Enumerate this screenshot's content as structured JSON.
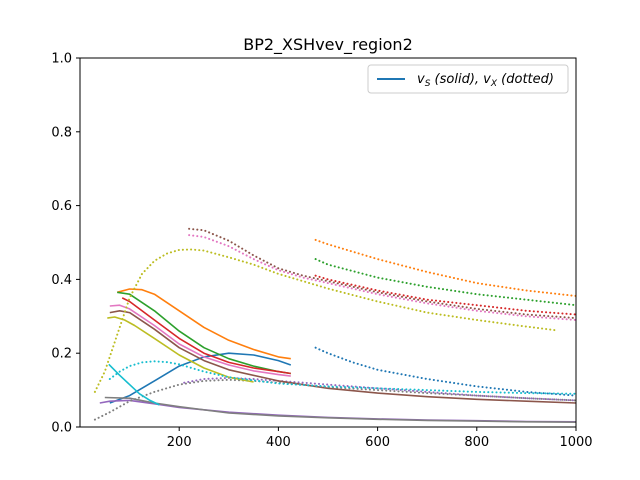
{
  "chart_data": {
    "type": "line",
    "title": "BP2_XSHvev_region2",
    "xlabel": "",
    "ylabel": "",
    "xlim": [
      0,
      1000
    ],
    "ylim": [
      0,
      1.0
    ],
    "xticks": [
      200,
      400,
      600,
      800,
      1000
    ],
    "yticks": [
      0.0,
      0.2,
      0.4,
      0.6,
      0.8,
      1.0
    ],
    "xtick_labels": [
      "200",
      "400",
      "600",
      "800",
      "1000"
    ],
    "ytick_labels": [
      "0.0",
      "0.2",
      "0.4",
      "0.6",
      "0.8",
      "1.0"
    ],
    "grid": false,
    "legend": {
      "placement": "top-right",
      "label": "v_S (solid), v_X (dotted)",
      "label_main": "v",
      "label_sub1": "S",
      "label_mid": " (solid), ",
      "label_sub2": "X",
      "label_end": " (dotted)",
      "color": "#1f77b4"
    },
    "series": [
      {
        "style": "solid",
        "color": "#1f77b4",
        "x": [
          60,
          100,
          150,
          200,
          250,
          300,
          350,
          400,
          425
        ],
        "y": [
          0.065,
          0.085,
          0.125,
          0.165,
          0.19,
          0.2,
          0.195,
          0.18,
          0.168
        ]
      },
      {
        "style": "dotted",
        "color": "#1f77b4",
        "x": [
          475,
          500,
          550,
          600,
          700,
          800,
          900,
          1000
        ],
        "y": [
          0.215,
          0.2,
          0.175,
          0.155,
          0.13,
          0.11,
          0.095,
          0.085
        ]
      },
      {
        "style": "solid",
        "color": "#ff7f0e",
        "x": [
          75,
          100,
          125,
          150,
          200,
          250,
          300,
          350,
          400,
          425
        ],
        "y": [
          0.365,
          0.374,
          0.372,
          0.36,
          0.315,
          0.27,
          0.235,
          0.21,
          0.19,
          0.185
        ]
      },
      {
        "style": "dotted",
        "color": "#ff7f0e",
        "x": [
          475,
          500,
          600,
          700,
          800,
          900,
          1000
        ],
        "y": [
          0.507,
          0.495,
          0.455,
          0.42,
          0.39,
          0.37,
          0.355
        ]
      },
      {
        "style": "solid",
        "color": "#2ca02c",
        "x": [
          75,
          100,
          150,
          200,
          250,
          300,
          350,
          400,
          425
        ],
        "y": [
          0.365,
          0.36,
          0.315,
          0.26,
          0.215,
          0.185,
          0.165,
          0.15,
          0.145
        ]
      },
      {
        "style": "dotted",
        "color": "#2ca02c",
        "x": [
          475,
          500,
          600,
          700,
          800,
          900,
          1000
        ],
        "y": [
          0.455,
          0.44,
          0.405,
          0.38,
          0.36,
          0.345,
          0.33
        ]
      },
      {
        "style": "solid",
        "color": "#d62728",
        "x": [
          85,
          100,
          150,
          200,
          250,
          300,
          350,
          400,
          425
        ],
        "y": [
          0.35,
          0.34,
          0.29,
          0.24,
          0.2,
          0.175,
          0.16,
          0.15,
          0.145
        ]
      },
      {
        "style": "dotted",
        "color": "#d62728",
        "x": [
          475,
          500,
          600,
          700,
          800,
          900,
          1000
        ],
        "y": [
          0.41,
          0.4,
          0.37,
          0.345,
          0.33,
          0.315,
          0.305
        ]
      },
      {
        "style": "solid",
        "color": "#9467bd",
        "x": [
          40,
          60,
          100,
          150,
          200,
          300,
          400,
          500,
          600,
          700,
          800,
          900,
          1000
        ],
        "y": [
          0.065,
          0.07,
          0.072,
          0.063,
          0.053,
          0.04,
          0.032,
          0.026,
          0.022,
          0.019,
          0.017,
          0.015,
          0.014
        ]
      },
      {
        "style": "dotted",
        "color": "#9467bd",
        "x": [
          210,
          250,
          300,
          350,
          400,
          450,
          500,
          600,
          700,
          800,
          900,
          1000
        ],
        "y": [
          0.12,
          0.13,
          0.133,
          0.13,
          0.125,
          0.12,
          0.115,
          0.105,
          0.095,
          0.085,
          0.078,
          0.072
        ]
      },
      {
        "style": "solid",
        "color": "#8c564b",
        "x": [
          60,
          80,
          100,
          150,
          200,
          250,
          300,
          400,
          500,
          600,
          700,
          800,
          900,
          1000
        ],
        "y": [
          0.31,
          0.315,
          0.31,
          0.265,
          0.215,
          0.18,
          0.155,
          0.125,
          0.105,
          0.092,
          0.082,
          0.075,
          0.07,
          0.065
        ]
      },
      {
        "style": "dotted",
        "color": "#8c564b",
        "x": [
          220,
          250,
          300,
          350,
          400,
          450,
          500,
          600,
          700,
          800,
          900,
          1000
        ],
        "y": [
          0.537,
          0.533,
          0.505,
          0.465,
          0.43,
          0.41,
          0.395,
          0.365,
          0.34,
          0.32,
          0.305,
          0.295
        ]
      },
      {
        "style": "solid",
        "color": "#e377c2",
        "x": [
          60,
          80,
          100,
          150,
          200,
          250,
          300,
          350,
          400,
          425
        ],
        "y": [
          0.328,
          0.33,
          0.32,
          0.275,
          0.225,
          0.19,
          0.168,
          0.152,
          0.142,
          0.138
        ]
      },
      {
        "style": "dotted",
        "color": "#e377c2",
        "x": [
          220,
          250,
          300,
          350,
          400,
          450,
          500,
          600,
          700,
          800,
          900,
          1000
        ],
        "y": [
          0.52,
          0.515,
          0.49,
          0.455,
          0.425,
          0.405,
          0.39,
          0.36,
          0.335,
          0.315,
          0.3,
          0.29
        ]
      },
      {
        "style": "solid",
        "color": "#7f7f7f",
        "x": [
          50,
          100,
          150,
          200,
          300,
          400,
          500,
          600,
          700,
          800,
          900,
          1000
        ],
        "y": [
          0.08,
          0.078,
          0.065,
          0.055,
          0.038,
          0.03,
          0.025,
          0.021,
          0.018,
          0.016,
          0.014,
          0.013
        ]
      },
      {
        "style": "dotted",
        "color": "#7f7f7f",
        "x": [
          30,
          60,
          100,
          150,
          200,
          250,
          300,
          350,
          400,
          500,
          600,
          700,
          800,
          900,
          1000
        ],
        "y": [
          0.02,
          0.04,
          0.07,
          0.095,
          0.115,
          0.125,
          0.128,
          0.125,
          0.12,
          0.108,
          0.1,
          0.092,
          0.085,
          0.078,
          0.072
        ]
      },
      {
        "style": "solid",
        "color": "#bcbd22",
        "x": [
          55,
          70,
          90,
          110,
          150,
          200,
          250,
          300,
          350
        ],
        "y": [
          0.295,
          0.298,
          0.29,
          0.275,
          0.24,
          0.195,
          0.16,
          0.135,
          0.122
        ]
      },
      {
        "style": "dotted",
        "color": "#bcbd22",
        "x": [
          30,
          50,
          75,
          100,
          125,
          150,
          175,
          200,
          225,
          250,
          300,
          350,
          400,
          500,
          600,
          700,
          800,
          900,
          960
        ],
        "y": [
          0.095,
          0.15,
          0.25,
          0.35,
          0.415,
          0.45,
          0.47,
          0.48,
          0.481,
          0.478,
          0.46,
          0.44,
          0.415,
          0.375,
          0.34,
          0.31,
          0.29,
          0.272,
          0.262
        ]
      },
      {
        "style": "solid",
        "color": "#17becf",
        "x": [
          58,
          80,
          100,
          120,
          140,
          160
        ],
        "y": [
          0.17,
          0.14,
          0.115,
          0.09,
          0.073,
          0.06
        ]
      },
      {
        "style": "dotted",
        "color": "#17becf",
        "x": [
          60,
          80,
          100,
          125,
          150,
          175,
          200,
          225,
          250,
          300,
          400,
          500,
          600,
          700,
          800,
          900,
          1000
        ],
        "y": [
          0.13,
          0.15,
          0.165,
          0.175,
          0.178,
          0.176,
          0.17,
          0.16,
          0.15,
          0.135,
          0.118,
          0.11,
          0.105,
          0.1,
          0.095,
          0.092,
          0.09
        ]
      }
    ]
  }
}
